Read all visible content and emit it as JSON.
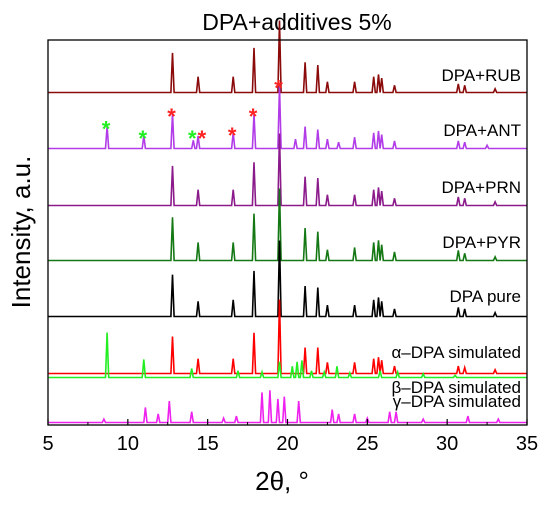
{
  "chart_data": {
    "type": "line",
    "title": "DPA+additives 5%",
    "xlabel": "2θ, °",
    "ylabel": "Intensity, a.u.",
    "xlim": [
      5,
      35
    ],
    "x_ticks": [
      "5",
      "10",
      "15",
      "20",
      "25",
      "30",
      "35"
    ],
    "grid": false,
    "legend": "none (trace labels at right of each stacked pattern)",
    "series": [
      {
        "name": "DPA+RUB",
        "color": "#8b0a0a",
        "peaks": [
          [
            12.8,
            0.55
          ],
          [
            14.4,
            0.22
          ],
          [
            16.6,
            0.22
          ],
          [
            17.9,
            0.62
          ],
          [
            19.5,
            1.0
          ],
          [
            21.1,
            0.42
          ],
          [
            21.9,
            0.38
          ],
          [
            22.5,
            0.15
          ],
          [
            24.2,
            0.15
          ],
          [
            25.4,
            0.22
          ],
          [
            25.7,
            0.25
          ],
          [
            25.9,
            0.2
          ],
          [
            26.7,
            0.1
          ],
          [
            30.7,
            0.12
          ],
          [
            31.1,
            0.1
          ],
          [
            33.0,
            0.05
          ]
        ]
      },
      {
        "name": "DPA+ANT",
        "color": "#b23ce8",
        "peaks": [
          [
            8.7,
            0.35
          ],
          [
            11.0,
            0.2
          ],
          [
            12.8,
            0.55
          ],
          [
            14.1,
            0.13
          ],
          [
            14.4,
            0.2
          ],
          [
            16.6,
            0.25
          ],
          [
            17.9,
            0.55
          ],
          [
            19.5,
            1.0
          ],
          [
            20.5,
            0.15
          ],
          [
            21.1,
            0.35
          ],
          [
            21.9,
            0.3
          ],
          [
            22.5,
            0.15
          ],
          [
            23.2,
            0.1
          ],
          [
            24.2,
            0.18
          ],
          [
            25.4,
            0.25
          ],
          [
            25.7,
            0.28
          ],
          [
            25.9,
            0.22
          ],
          [
            26.7,
            0.12
          ],
          [
            30.7,
            0.12
          ],
          [
            31.1,
            0.1
          ],
          [
            32.5,
            0.05
          ]
        ]
      },
      {
        "name": "DPA+PRN",
        "color": "#8b1a8b",
        "peaks": [
          [
            12.8,
            0.55
          ],
          [
            14.4,
            0.22
          ],
          [
            16.6,
            0.22
          ],
          [
            17.9,
            0.6
          ],
          [
            19.5,
            1.0
          ],
          [
            21.1,
            0.4
          ],
          [
            21.9,
            0.38
          ],
          [
            22.5,
            0.15
          ],
          [
            24.2,
            0.15
          ],
          [
            25.4,
            0.22
          ],
          [
            25.7,
            0.25
          ],
          [
            25.9,
            0.2
          ],
          [
            26.7,
            0.1
          ],
          [
            30.7,
            0.12
          ],
          [
            31.1,
            0.1
          ],
          [
            33.0,
            0.05
          ]
        ]
      },
      {
        "name": "DPA+PYR",
        "color": "#147814",
        "peaks": [
          [
            12.8,
            0.6
          ],
          [
            14.4,
            0.25
          ],
          [
            16.6,
            0.25
          ],
          [
            17.9,
            0.65
          ],
          [
            19.5,
            1.0
          ],
          [
            21.1,
            0.45
          ],
          [
            21.9,
            0.4
          ],
          [
            22.5,
            0.15
          ],
          [
            24.2,
            0.18
          ],
          [
            25.4,
            0.25
          ],
          [
            25.7,
            0.28
          ],
          [
            25.9,
            0.22
          ],
          [
            26.7,
            0.12
          ],
          [
            30.7,
            0.14
          ],
          [
            31.1,
            0.1
          ],
          [
            33.0,
            0.05
          ]
        ]
      },
      {
        "name": "DPA pure",
        "color": "#000000",
        "peaks": [
          [
            12.8,
            0.55
          ],
          [
            14.4,
            0.2
          ],
          [
            16.6,
            0.22
          ],
          [
            17.9,
            0.6
          ],
          [
            19.5,
            1.0
          ],
          [
            21.1,
            0.4
          ],
          [
            21.9,
            0.38
          ],
          [
            22.5,
            0.15
          ],
          [
            24.2,
            0.15
          ],
          [
            25.4,
            0.22
          ],
          [
            25.7,
            0.25
          ],
          [
            25.9,
            0.2
          ],
          [
            26.7,
            0.1
          ],
          [
            30.7,
            0.12
          ],
          [
            31.1,
            0.1
          ],
          [
            33.0,
            0.05
          ]
        ]
      },
      {
        "name": "α–DPA simulated",
        "color": "#ff0000",
        "peaks": [
          [
            12.8,
            0.5
          ],
          [
            14.4,
            0.2
          ],
          [
            16.6,
            0.2
          ],
          [
            17.9,
            0.55
          ],
          [
            19.5,
            1.0
          ],
          [
            21.1,
            0.35
          ],
          [
            21.9,
            0.35
          ],
          [
            22.5,
            0.15
          ],
          [
            24.2,
            0.15
          ],
          [
            25.4,
            0.2
          ],
          [
            25.7,
            0.22
          ],
          [
            25.9,
            0.18
          ],
          [
            26.7,
            0.1
          ],
          [
            30.7,
            0.1
          ],
          [
            31.1,
            0.08
          ],
          [
            33.0,
            0.05
          ]
        ]
      },
      {
        "name": "β–DPA simulated",
        "color": "#22ee22",
        "peaks": [
          [
            8.7,
            1.0
          ],
          [
            11.0,
            0.4
          ],
          [
            14.0,
            0.2
          ],
          [
            16.9,
            0.15
          ],
          [
            18.4,
            0.12
          ],
          [
            19.5,
            0.35
          ],
          [
            20.3,
            0.25
          ],
          [
            20.6,
            0.35
          ],
          [
            20.9,
            0.38
          ],
          [
            21.5,
            0.15
          ],
          [
            22.3,
            0.12
          ],
          [
            23.1,
            0.25
          ],
          [
            23.9,
            0.1
          ],
          [
            25.8,
            0.15
          ],
          [
            26.9,
            0.12
          ],
          [
            28.5,
            0.08
          ],
          [
            30.5,
            0.05
          ]
        ]
      },
      {
        "name": "γ–DPA simulated",
        "color": "#ee22ee",
        "peaks": [
          [
            8.5,
            0.08
          ],
          [
            11.1,
            0.35
          ],
          [
            11.9,
            0.2
          ],
          [
            12.6,
            0.5
          ],
          [
            14.0,
            0.25
          ],
          [
            16.0,
            0.1
          ],
          [
            16.8,
            0.15
          ],
          [
            18.4,
            0.7
          ],
          [
            18.9,
            0.75
          ],
          [
            19.4,
            0.55
          ],
          [
            19.8,
            0.6
          ],
          [
            20.7,
            0.5
          ],
          [
            22.8,
            0.3
          ],
          [
            23.2,
            0.2
          ],
          [
            24.2,
            0.2
          ],
          [
            25.0,
            0.1
          ],
          [
            26.4,
            0.25
          ],
          [
            26.8,
            0.25
          ],
          [
            28.5,
            0.08
          ],
          [
            31.3,
            0.15
          ],
          [
            33.2,
            0.08
          ]
        ]
      }
    ],
    "annotations": {
      "green_stars": {
        "color": "#22ee22",
        "x": [
          8.7,
          11.0,
          14.1
        ]
      },
      "red_stars": {
        "color": "#ff2222",
        "x": [
          12.8,
          14.7,
          16.6,
          17.9,
          19.5
        ]
      }
    }
  }
}
